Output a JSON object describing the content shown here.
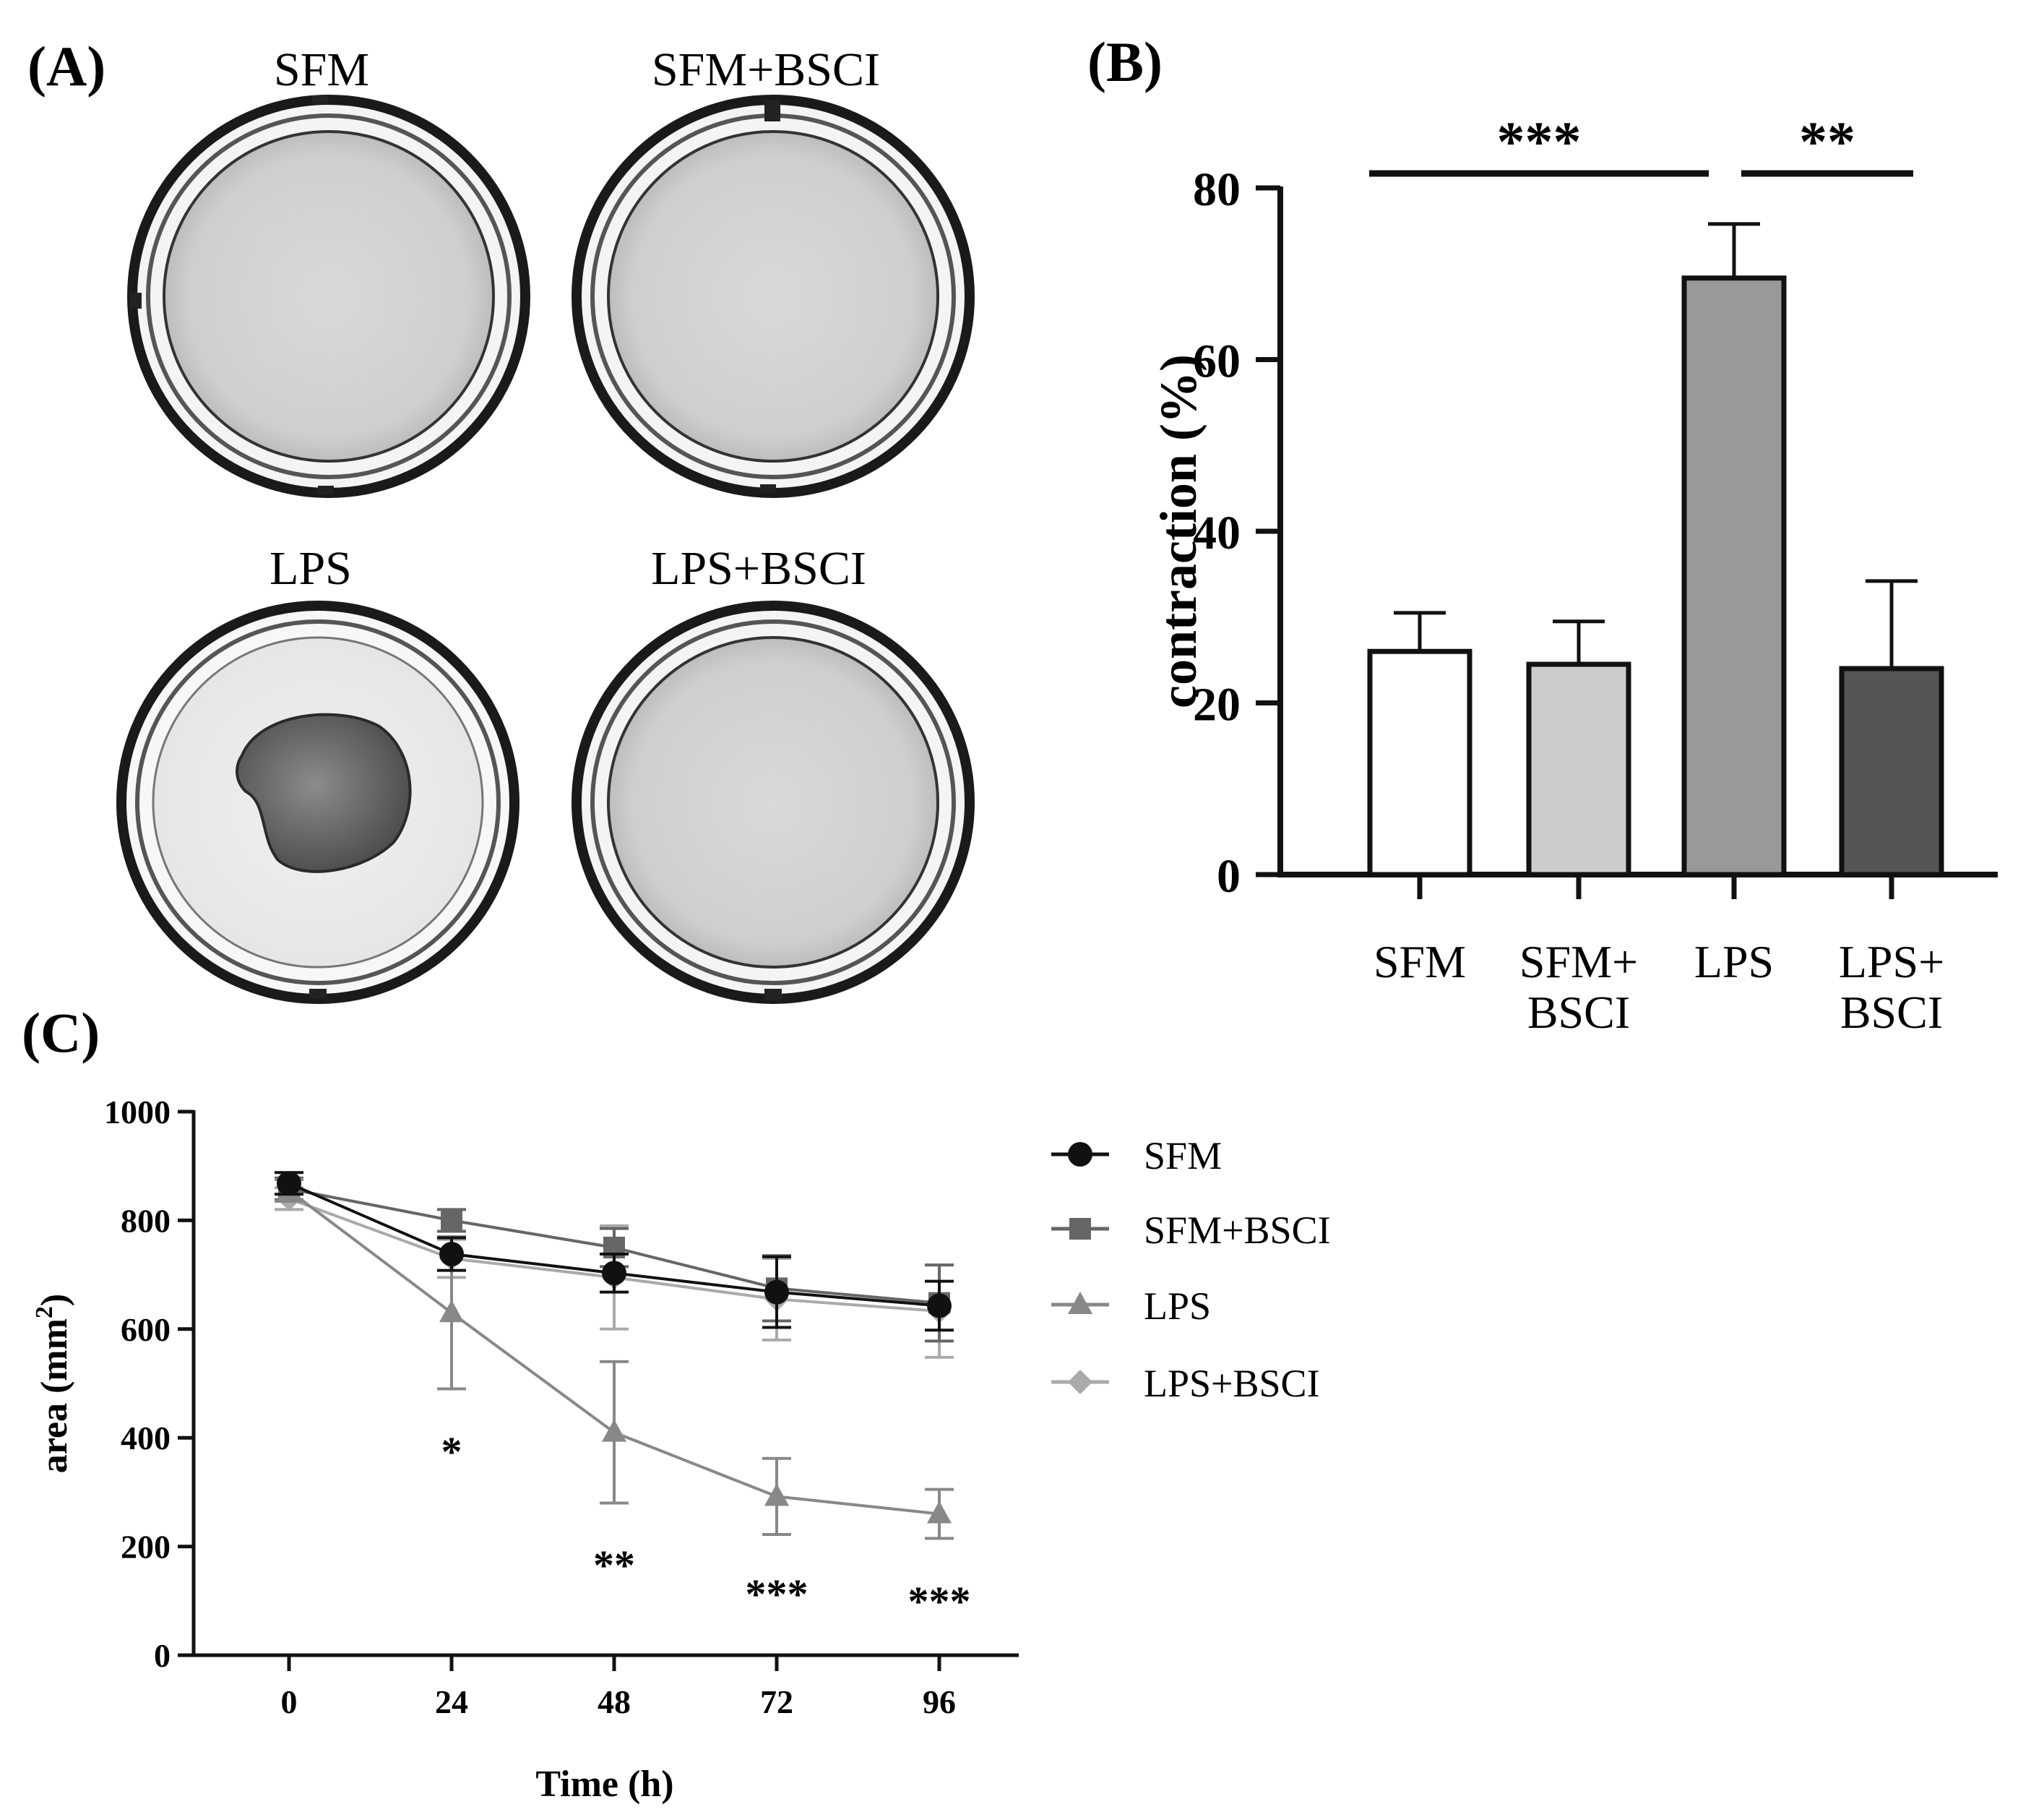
{
  "panels": {
    "a": {
      "label": "(A)",
      "wells": [
        {
          "title": "SFM"
        },
        {
          "title": "SFM+BSCI"
        },
        {
          "title": "LPS"
        },
        {
          "title": "LPS+BSCI"
        }
      ]
    },
    "b": {
      "label": "(B)"
    },
    "c": {
      "label": "(C)"
    }
  },
  "chart_data": [
    {
      "id": "B",
      "type": "bar",
      "categories": [
        [
          "SFM"
        ],
        [
          "SFM+",
          "BSCI"
        ],
        [
          "LPS"
        ],
        [
          "LPS+",
          "BSCI"
        ]
      ],
      "values": [
        26,
        24.5,
        69.5,
        24
      ],
      "errors": [
        4.5,
        5,
        6.3,
        10.2
      ],
      "bar_colors": [
        "#ffffff",
        "#cccccc",
        "#999999",
        "#555555"
      ],
      "ylabel": "contraction (%)",
      "ylim": [
        0,
        80
      ],
      "yticks": [
        "0",
        "20",
        "40",
        "60",
        "80"
      ],
      "significance": [
        {
          "from": 0,
          "to": 2,
          "label": "***"
        },
        {
          "from": 2,
          "to": 3,
          "label": "**"
        }
      ]
    },
    {
      "id": "C",
      "type": "line",
      "x": [
        0,
        24,
        48,
        72,
        96
      ],
      "xticks": [
        "0",
        "24",
        "48",
        "72",
        "96"
      ],
      "xlabel": "Time (h)",
      "ylabel_base": "area (mm",
      "ylabel_sup": "2",
      "ylabel_end": ")",
      "ylim": [
        0,
        1000
      ],
      "yticks": [
        "0",
        "200",
        "400",
        "600",
        "800",
        "1000"
      ],
      "series": [
        {
          "name": "SFM",
          "marker": "circle",
          "color": "#111111",
          "values": [
            868,
            738,
            703,
            668,
            643
          ],
          "errors": [
            20,
            30,
            35,
            65,
            45
          ]
        },
        {
          "name": "SFM+BSCI",
          "marker": "square",
          "color": "#666666",
          "values": [
            858,
            800,
            750,
            675,
            648
          ],
          "errors": [
            20,
            20,
            35,
            60,
            70
          ]
        },
        {
          "name": "LPS",
          "marker": "triangle",
          "color": "#888888",
          "values": [
            855,
            630,
            410,
            292,
            260
          ],
          "errors": [
            20,
            140,
            130,
            70,
            45
          ]
        },
        {
          "name": "LPS+BSCI",
          "marker": "diamond",
          "color": "#aaaaaa",
          "values": [
            840,
            730,
            695,
            655,
            633
          ],
          "errors": [
            20,
            35,
            95,
            75,
            85
          ]
        }
      ],
      "significance": [
        {
          "x": 24,
          "label": "*"
        },
        {
          "x": 48,
          "label": "**"
        },
        {
          "x": 72,
          "label": "***"
        },
        {
          "x": 96,
          "label": "***"
        }
      ]
    }
  ]
}
